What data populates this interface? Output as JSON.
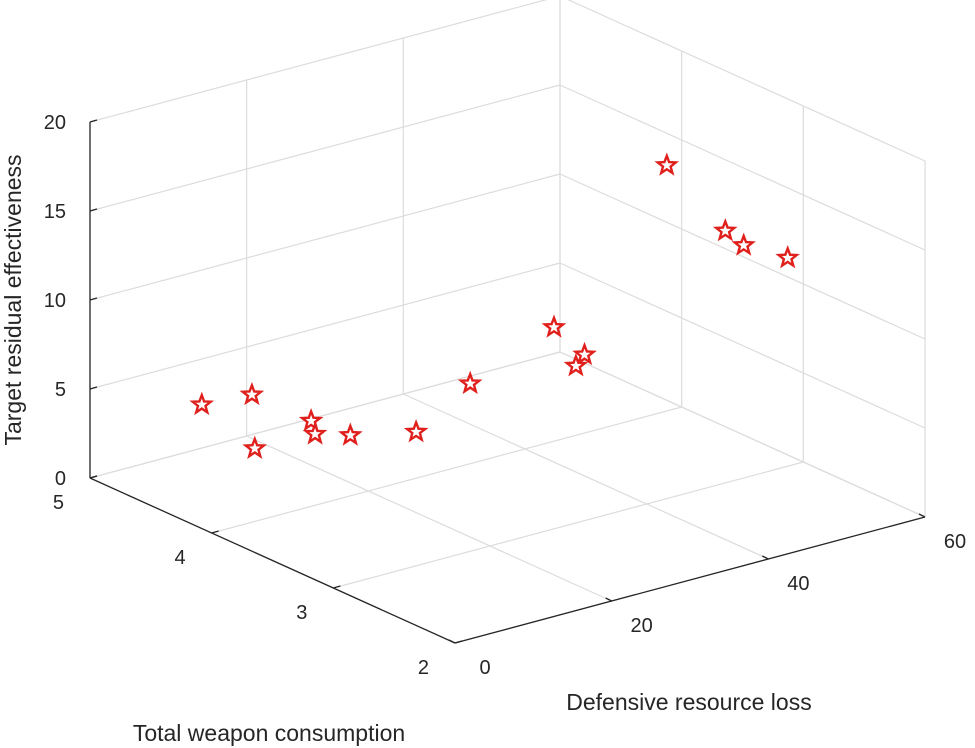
{
  "chart_data": {
    "type": "scatter",
    "projection": "3d",
    "xlabel": "Defensive resource loss",
    "ylabel": "Total weapon consumption",
    "zlabel": "Target residual effectiveness",
    "xlim": [
      0,
      60
    ],
    "ylim": [
      2,
      5
    ],
    "zlim": [
      0,
      20
    ],
    "xticks": [
      "0",
      "20",
      "40",
      "60"
    ],
    "yticks": [
      "2",
      "3",
      "4",
      "5"
    ],
    "zticks": [
      "0",
      "5",
      "10",
      "15",
      "20"
    ],
    "grid": true,
    "marker": "pentagram",
    "marker_color": "#e0201c",
    "points": [
      {
        "x": 6.5,
        "y": 4.5,
        "z": 4.9
      },
      {
        "x": 12.9,
        "y": 4.5,
        "z": 4.7
      },
      {
        "x": 5.5,
        "y": 4.0,
        "z": 4.1
      },
      {
        "x": 12.7,
        "y": 4.0,
        "z": 4.8
      },
      {
        "x": 13.2,
        "y": 4.0,
        "z": 4.0
      },
      {
        "x": 17.7,
        "y": 4.0,
        "z": 3.4
      },
      {
        "x": 26.1,
        "y": 4.0,
        "z": 2.6
      },
      {
        "x": 33.0,
        "y": 4.0,
        "z": 4.5
      },
      {
        "x": 43.7,
        "y": 4.0,
        "z": 6.4
      },
      {
        "x": 47.6,
        "y": 4.0,
        "z": 4.4
      },
      {
        "x": 46.5,
        "y": 4.0,
        "z": 3.9
      },
      {
        "x": 58.1,
        "y": 4.0,
        "z": 13.8
      },
      {
        "x": 57.8,
        "y": 3.5,
        "z": 11.7
      },
      {
        "x": 58.6,
        "y": 3.4,
        "z": 11.1
      },
      {
        "x": 58.0,
        "y": 3.0,
        "z": 11.7
      }
    ]
  }
}
